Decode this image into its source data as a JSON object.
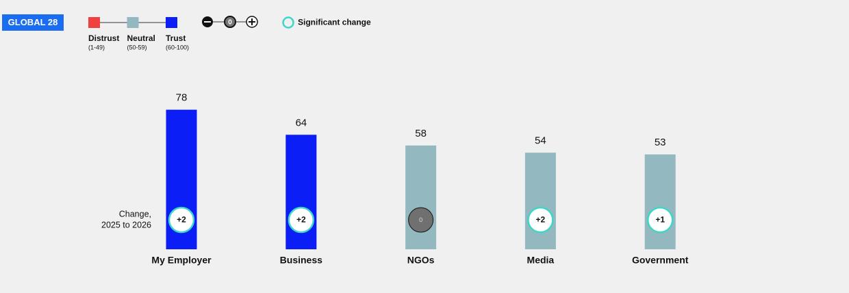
{
  "chart_data": {
    "type": "bar",
    "badge": "GLOBAL 28",
    "legend": [
      {
        "name": "Distrust",
        "range": "(1-49)",
        "color": "#f04040"
      },
      {
        "name": "Neutral",
        "range": "(50-59)",
        "color": "#93b8bf"
      },
      {
        "name": "Trust",
        "range": "(60-100)",
        "color": "#0a1ef5"
      }
    ],
    "significance_label": "Significant change",
    "change_title": [
      "Change,",
      "2025 to 2026"
    ],
    "categories": [
      "My Employer",
      "Business",
      "NGOs",
      "Media",
      "Government"
    ],
    "values": [
      78,
      64,
      58,
      54,
      53
    ],
    "colors": [
      "#0a1ef5",
      "#0a1ef5",
      "#93b8bf",
      "#93b8bf",
      "#93b8bf"
    ],
    "change_labels": [
      "+2",
      "+2",
      "0",
      "+2",
      "+1"
    ],
    "significant": [
      true,
      true,
      false,
      true,
      true
    ],
    "ylim": [
      0,
      100
    ]
  }
}
